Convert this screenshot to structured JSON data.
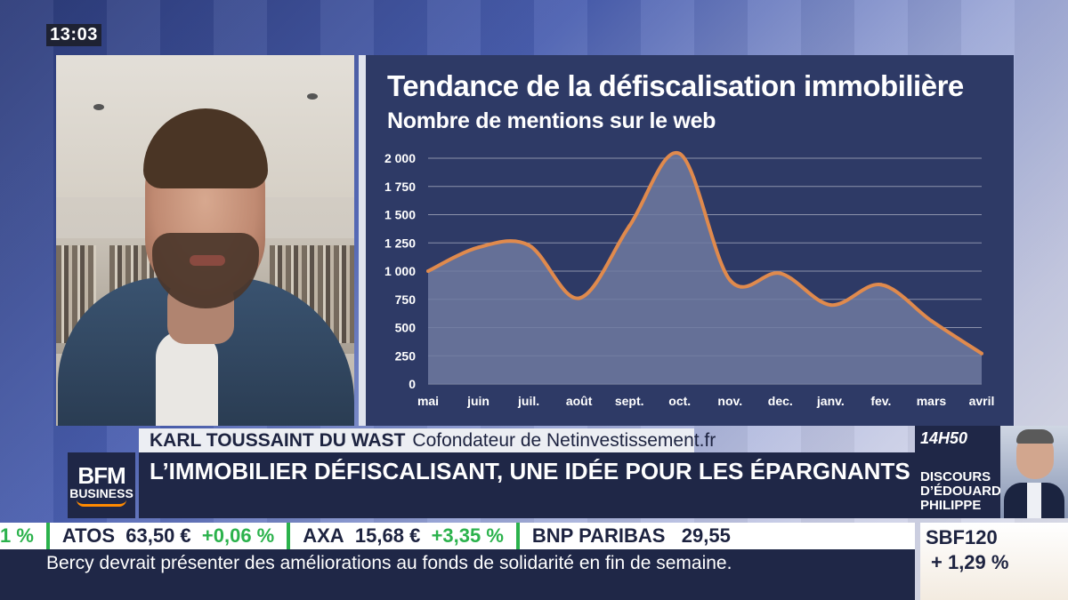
{
  "clock": "13:03",
  "chart_data": {
    "type": "area",
    "title": "Tendance de la défiscalisation immobilière",
    "subtitle": "Nombre de mentions sur le web",
    "categories": [
      "mai",
      "juin",
      "juil.",
      "août",
      "sept.",
      "oct.",
      "nov.",
      "dec.",
      "janv.",
      "fev.",
      "mars",
      "avril"
    ],
    "values": [
      1000,
      1210,
      1230,
      760,
      1400,
      2040,
      920,
      980,
      700,
      880,
      560,
      270
    ],
    "yticks": [
      "2 000",
      "1 750",
      "1 500",
      "1 250",
      "1 000",
      "750",
      "500",
      "250",
      "0"
    ],
    "ylim": [
      0,
      2000
    ],
    "grid": true,
    "colors": {
      "line": "#e08a4d",
      "fill": "#6f7aa0",
      "background": "#2e3a66"
    }
  },
  "lower_third": {
    "guest_name": "KARL TOUSSAINT DU WAST",
    "guest_role": "Cofondateur de Netinvestissement.fr",
    "headline": "L’IMMOBILIER DÉFISCALISANT, UNE IDÉE POUR LES ÉPARGNANTS",
    "logo_line1": "BFM",
    "logo_line2": "BUSINESS"
  },
  "side_box": {
    "time": "14H50",
    "text": "DISCOURS D’ÉDOUARD PHILIPPE"
  },
  "ticker": {
    "lead_fragment": "1 %",
    "stocks": [
      {
        "name": "ATOS",
        "price": "63,50 €",
        "change": "+0,06 %"
      },
      {
        "name": "AXA",
        "price": "15,68 €",
        "change": "+3,35 %"
      },
      {
        "name": "BNP PARIBAS",
        "price": "29,55",
        "change": ""
      }
    ],
    "news": "Bercy devrait présenter des améliorations au fonds de solidarité en fin de semaine.",
    "index_name": "SBF120",
    "index_change": "+ 1,29 %"
  }
}
